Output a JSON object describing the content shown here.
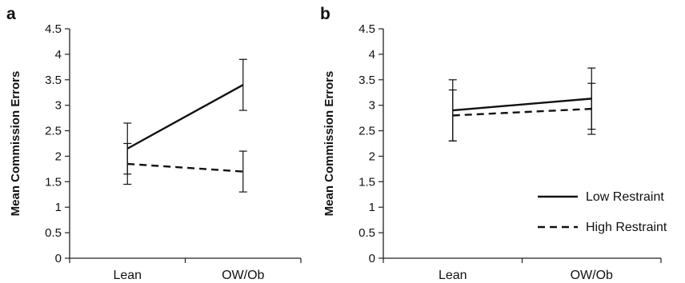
{
  "chart_data": [
    {
      "type": "line",
      "panel_label": "a",
      "categories": [
        "Lean",
        "OW/Ob"
      ],
      "ylabel": "Mean Commission Errors",
      "xlabel": "",
      "ylim": [
        0,
        4.5
      ],
      "yticks": [
        "0",
        "0.5",
        "1",
        "1.5",
        "2",
        "2.5",
        "3",
        "3.5",
        "4",
        "4.5"
      ],
      "legend": "none",
      "grid": false,
      "series": [
        {
          "name": "Low Restraint",
          "style": "solid",
          "color": "#111111",
          "values": [
            2.15,
            3.4
          ],
          "error_low": [
            1.65,
            2.9
          ],
          "error_high": [
            2.65,
            3.9
          ]
        },
        {
          "name": "High Restraint",
          "style": "dashed",
          "color": "#111111",
          "values": [
            1.85,
            1.7
          ],
          "error_low": [
            1.45,
            1.3
          ],
          "error_high": [
            2.25,
            2.1
          ]
        }
      ]
    },
    {
      "type": "line",
      "panel_label": "b",
      "categories": [
        "Lean",
        "OW/Ob"
      ],
      "ylabel": "Mean Commission Errors",
      "xlabel": "",
      "ylim": [
        0,
        4.5
      ],
      "yticks": [
        "0",
        "0.5",
        "1",
        "1.5",
        "2",
        "2.5",
        "3",
        "3.5",
        "4",
        "4.5"
      ],
      "legend": "bottom-right",
      "grid": false,
      "series": [
        {
          "name": "Low Restraint",
          "style": "solid",
          "color": "#111111",
          "values": [
            2.9,
            3.13
          ],
          "error_low": [
            2.3,
            2.53
          ],
          "error_high": [
            3.5,
            3.73
          ]
        },
        {
          "name": "High Restraint",
          "style": "dashed",
          "color": "#111111",
          "values": [
            2.8,
            2.93
          ],
          "error_low": [
            2.3,
            2.43
          ],
          "error_high": [
            3.3,
            3.43
          ]
        }
      ]
    }
  ]
}
